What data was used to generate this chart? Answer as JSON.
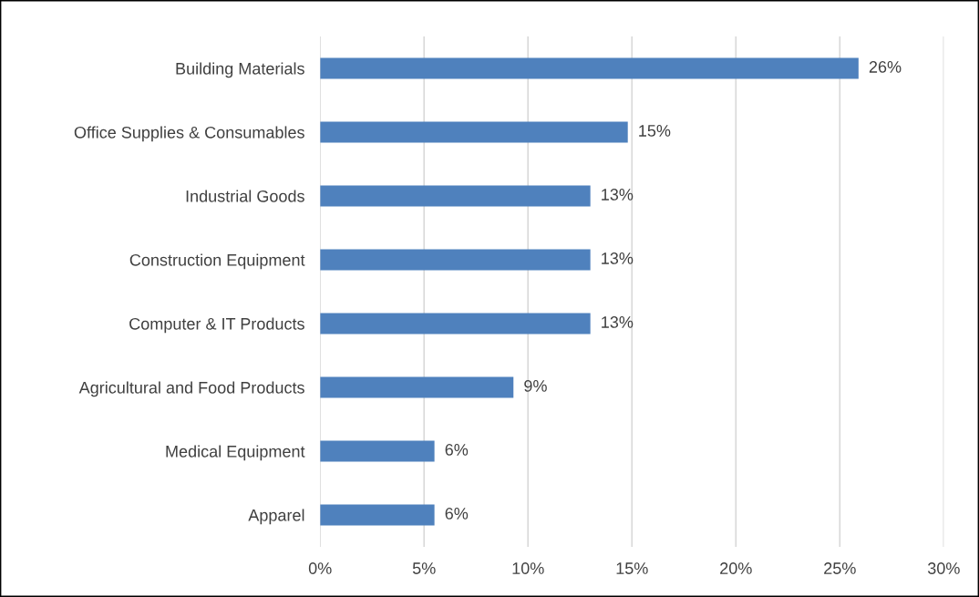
{
  "chart_data": {
    "type": "bar",
    "orientation": "horizontal",
    "categories": [
      "Building Materials",
      "Office Supplies & Consumables",
      "Industrial Goods",
      "Construction Equipment",
      "Computer & IT Products",
      "Agricultural and Food Products",
      "Medical Equipment",
      "Apparel"
    ],
    "values": [
      25.9,
      14.8,
      13.0,
      13.0,
      13.0,
      9.3,
      5.5,
      5.5
    ],
    "value_labels": [
      "26%",
      "15%",
      "13%",
      "13%",
      "13%",
      "9%",
      "6%",
      "6%"
    ],
    "color": "#4f81bd",
    "xlim": [
      0,
      30
    ],
    "xticks": [
      {
        "value": 0,
        "label": "0%"
      },
      {
        "value": 5,
        "label": "5%"
      },
      {
        "value": 10,
        "label": "10%"
      },
      {
        "value": 15,
        "label": "15%"
      },
      {
        "value": 20,
        "label": "20%"
      },
      {
        "value": 25,
        "label": "25%"
      },
      {
        "value": 30,
        "label": "30%"
      }
    ],
    "grid": "x"
  }
}
